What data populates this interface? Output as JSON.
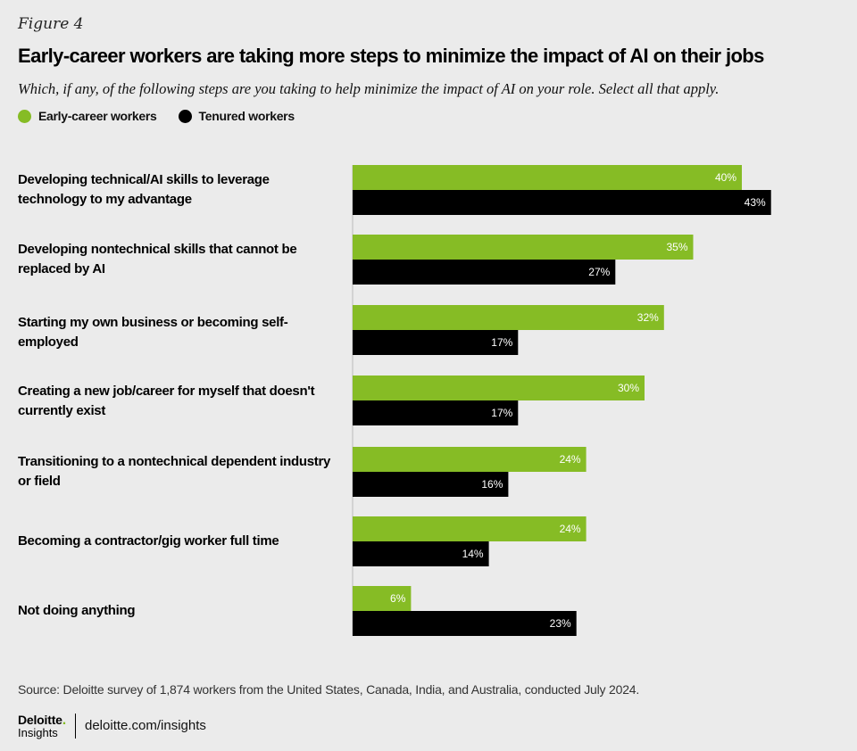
{
  "figure_label": "Figure 4",
  "brand": {
    "name": "Deloitte",
    "dot": ".",
    "sub": "Insights",
    "link": "deloitte.com/insights"
  },
  "source": "Source: Deloitte survey of 1,874 workers from the United States, Canada, India, and Australia, conducted July 2024.",
  "colors": {
    "early": "#86bc25",
    "tenured": "#000000",
    "background": "#ebebeb"
  },
  "chart_data": {
    "type": "bar",
    "orientation": "horizontal",
    "title": "Early-career workers are taking more steps to minimize the impact of AI on their jobs",
    "subtitle": "Which, if any, of the following steps are you taking to help minimize the impact of AI on your role. Select all that apply.",
    "xlim": [
      0,
      50
    ],
    "unit": "%",
    "legend_position": "top-left",
    "categories": [
      "Developing technical/AI skills to leverage technology to my advantage",
      "Developing nontechnical skills that cannot be replaced by AI",
      "Starting my own business or becoming self-employed",
      "Creating a new job/career for myself that doesn't currently exist",
      "Transitioning to a nontechnical dependent industry or field",
      "Becoming a contractor/gig worker full time",
      "Not doing anything"
    ],
    "series": [
      {
        "name": "Early-career workers",
        "color": "#86bc25",
        "values": [
          40,
          35,
          32,
          30,
          24,
          24,
          6
        ]
      },
      {
        "name": "Tenured workers",
        "color": "#000000",
        "values": [
          43,
          27,
          17,
          17,
          16,
          14,
          23
        ]
      }
    ]
  }
}
